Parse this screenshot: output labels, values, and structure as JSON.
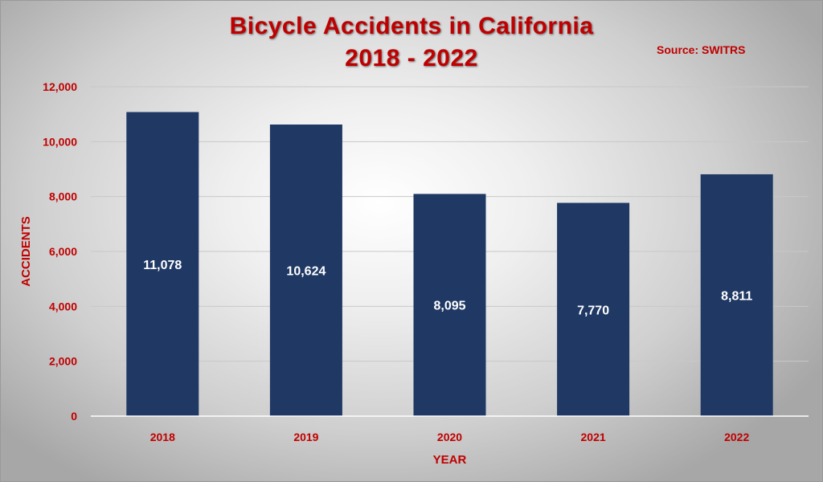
{
  "title_line1": "Bicycle Accidents in California",
  "title_line2": "2018 - 2022",
  "source": "Source: SWITRS",
  "colors": {
    "bar": "#1f3864",
    "text_accent": "#c00000",
    "bar_label": "#ffffff"
  },
  "chart_data": {
    "type": "bar",
    "categories": [
      "2018",
      "2019",
      "2020",
      "2021",
      "2022"
    ],
    "values": [
      11078,
      10624,
      8095,
      7770,
      8811
    ],
    "data_labels": [
      "11,078",
      "10,624",
      "8,095",
      "7,770",
      "8,811"
    ],
    "xlabel": "YEAR",
    "ylabel": "ACCIDENTS",
    "ylim": [
      0,
      12000
    ],
    "yticks": [
      0,
      2000,
      4000,
      6000,
      8000,
      10000,
      12000
    ],
    "ytick_labels": [
      "0",
      "2,000",
      "4,000",
      "6,000",
      "8,000",
      "10,000",
      "12,000"
    ],
    "grid": true,
    "legend": false
  }
}
